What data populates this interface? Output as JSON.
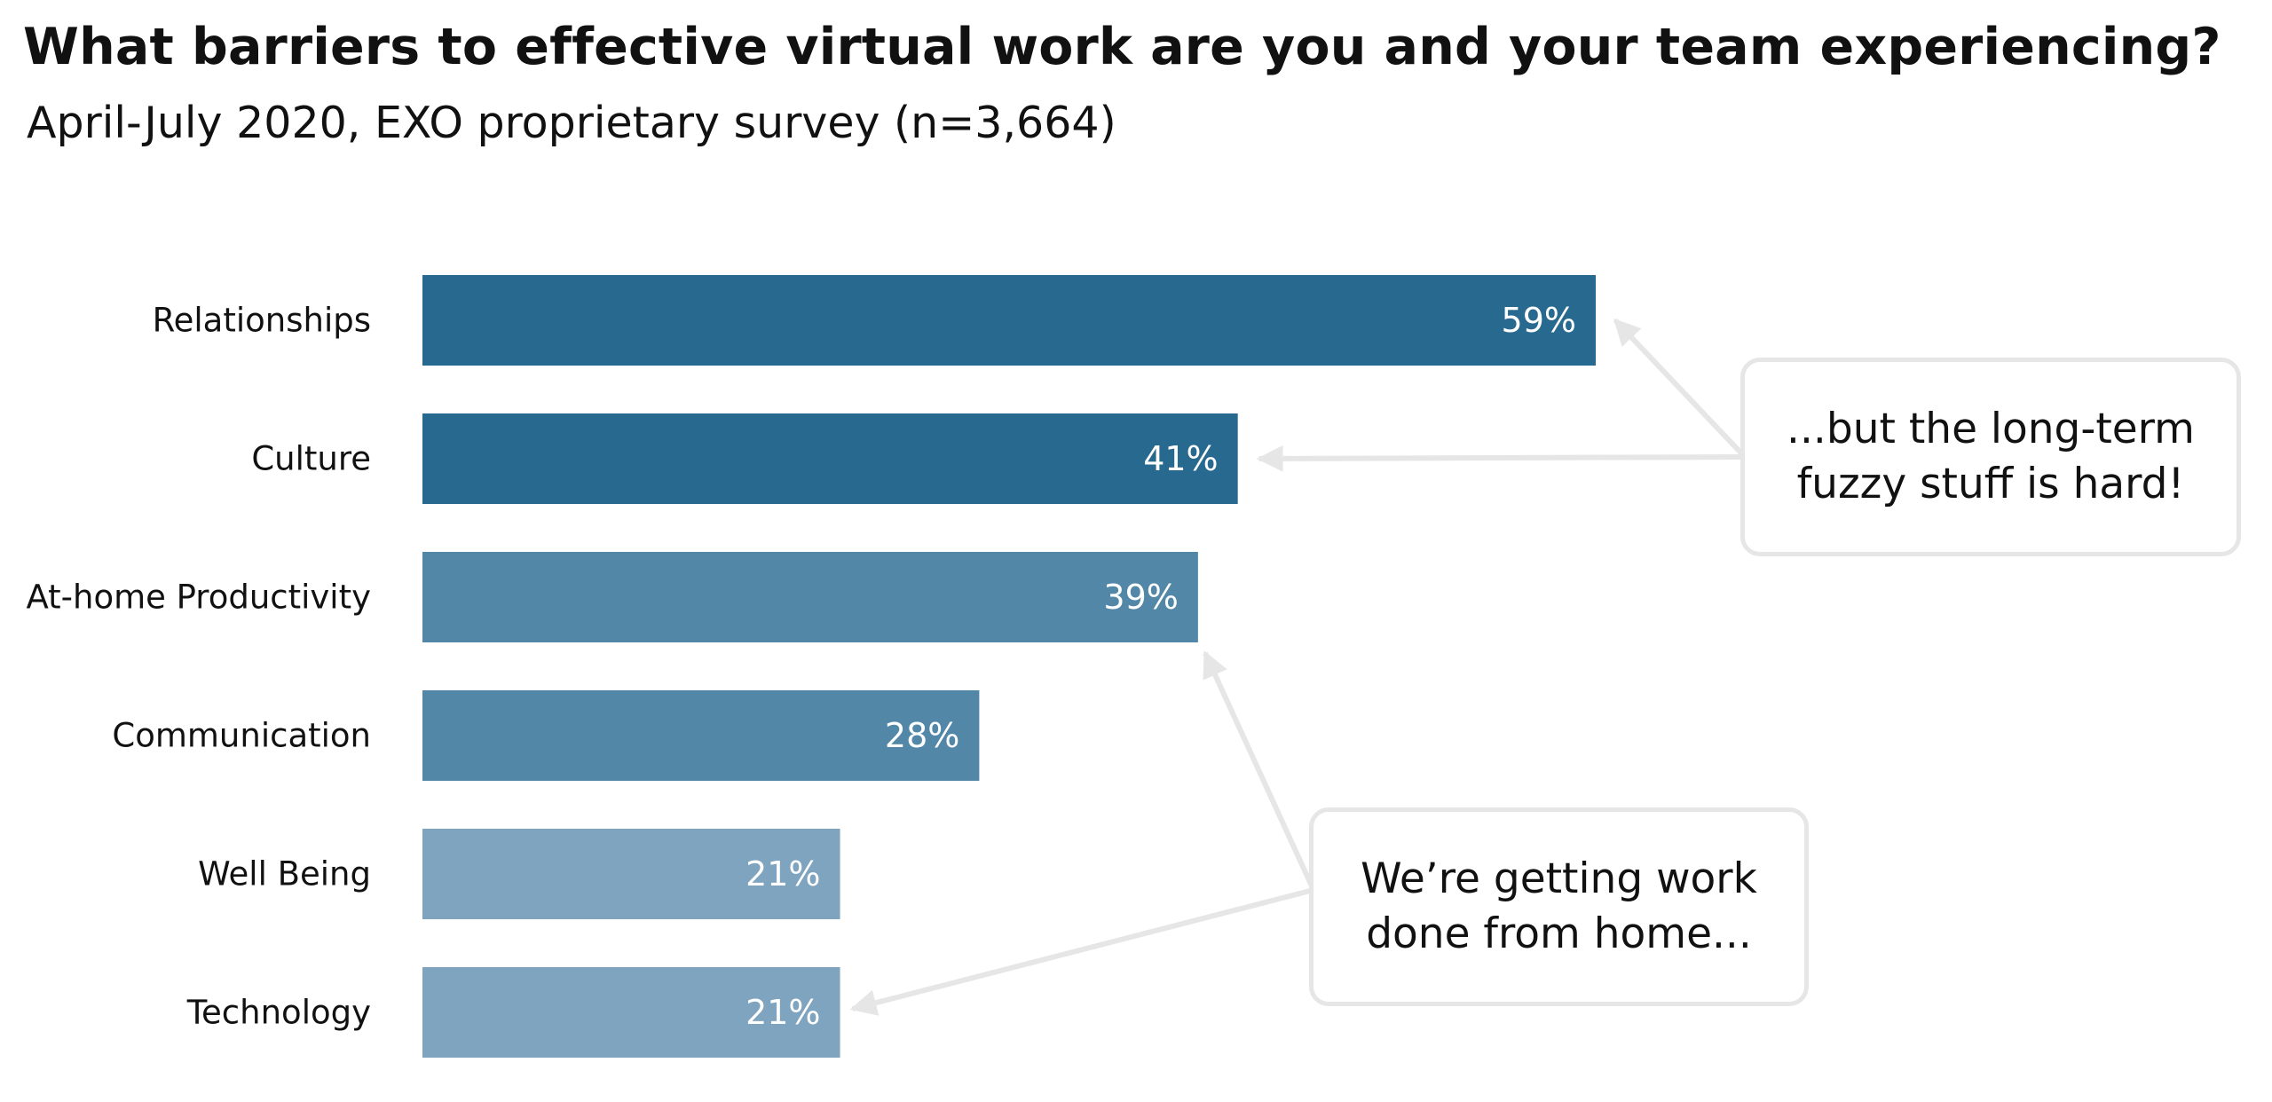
{
  "title": "What barriers to effective virtual work are you and your team experiencing?",
  "subtitle": "April-July 2020, EXO proprietary survey (n=3,664)",
  "chart_data": {
    "type": "bar",
    "orientation": "horizontal",
    "categories": [
      "Relationships",
      "Culture",
      "At-home Productivity",
      "Communication",
      "Well Being",
      "Technology"
    ],
    "values": [
      59,
      41,
      39,
      28,
      21,
      21
    ],
    "value_labels": [
      "59%",
      "41%",
      "39%",
      "28%",
      "21%",
      "21%"
    ],
    "unit": "%",
    "xlim": [
      0,
      59
    ],
    "grid": false,
    "legend": "none",
    "colors": [
      "#286990",
      "#286990",
      "#5287a8",
      "#5287a8",
      "#7fa4bf",
      "#7fa4bf"
    ],
    "label_color": "#ffffff",
    "arrow_color": "#e6e6e6",
    "annotations": [
      {
        "text_lines": [
          "...but the long-term",
          "fuzzy stuff is hard!"
        ],
        "points_to": [
          "Relationships",
          "Culture"
        ]
      },
      {
        "text_lines": [
          "We’re getting work",
          "done from home..."
        ],
        "points_to": [
          "At-home Productivity",
          "Technology"
        ]
      }
    ]
  }
}
